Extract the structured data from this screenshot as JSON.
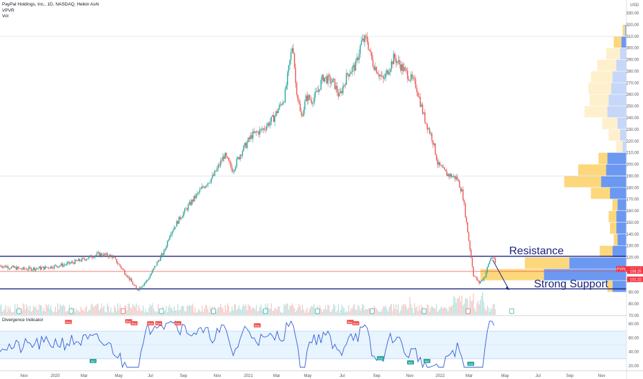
{
  "legend": {
    "symbol_line": "PayPal Holdings, Inc., 1D, NASDAQ, Heikin Ashi",
    "indicator1": "VPVR",
    "indicator2": "Vol"
  },
  "oscillator": {
    "title": "Divergence Indicator"
  },
  "currency": "USD",
  "annotations": {
    "resistance": "Resistance",
    "support": "Strong Support"
  },
  "price_tags": [
    {
      "label": "PYPL",
      "value": "110.10",
      "color": "#f23645"
    },
    {
      "label": "",
      "value": "108.25",
      "color": "#f23645"
    },
    {
      "label": "",
      "value": "101.22",
      "color": "#f23645"
    }
  ],
  "colors": {
    "up": "#26a69a",
    "down": "#ef5350",
    "resistance_line": "#1a237e",
    "vp_blue": "#5b8def",
    "vp_yellow": "#fcd36e",
    "osc_line": "#2e5bd6"
  },
  "chart_data": {
    "type": "candlestick",
    "title": "PayPal Holdings, Inc., 1D, NASDAQ, Heikin Ashi",
    "y_axis": {
      "ticks": [
        70,
        80,
        90,
        100,
        110,
        120,
        130,
        140,
        150,
        160,
        170,
        180,
        190,
        200,
        210,
        220,
        230,
        240,
        250,
        260,
        270,
        280,
        290,
        300,
        310,
        320,
        330
      ],
      "ylim": [
        70,
        333
      ]
    },
    "x_axis": {
      "ticks": [
        "Nov",
        "2020",
        "Mar",
        "May",
        "Jul",
        "Sep",
        "Nov",
        "2021",
        "Mar",
        "May",
        "Jul",
        "Sep",
        "Nov",
        "2022",
        "Mar",
        "May",
        "Jul",
        "Sep",
        "Nov"
      ]
    },
    "price_path": [
      [
        0,
        113
      ],
      [
        8,
        110
      ],
      [
        16,
        111
      ],
      [
        24,
        114
      ],
      [
        30,
        118
      ],
      [
        36,
        123
      ],
      [
        41,
        121
      ],
      [
        46,
        106
      ],
      [
        50,
        92
      ],
      [
        54,
        101
      ],
      [
        58,
        118
      ],
      [
        60,
        125
      ],
      [
        62,
        140
      ],
      [
        66,
        155
      ],
      [
        70,
        168
      ],
      [
        74,
        180
      ],
      [
        78,
        190
      ],
      [
        82,
        208
      ],
      [
        85,
        195
      ],
      [
        88,
        210
      ],
      [
        92,
        225
      ],
      [
        96,
        230
      ],
      [
        100,
        240
      ],
      [
        104,
        258
      ],
      [
        106,
        290
      ],
      [
        107,
        305
      ],
      [
        108,
        270
      ],
      [
        110,
        240
      ],
      [
        112,
        258
      ],
      [
        114,
        255
      ],
      [
        116,
        262
      ],
      [
        118,
        275
      ],
      [
        122,
        270
      ],
      [
        124,
        258
      ],
      [
        127,
        278
      ],
      [
        130,
        285
      ],
      [
        132,
        305
      ],
      [
        134,
        308
      ],
      [
        136,
        288
      ],
      [
        140,
        272
      ],
      [
        144,
        292
      ],
      [
        148,
        280
      ],
      [
        152,
        268
      ],
      [
        155,
        240
      ],
      [
        158,
        222
      ],
      [
        160,
        200
      ],
      [
        163,
        192
      ],
      [
        167,
        188
      ],
      [
        169,
        175
      ],
      [
        171,
        140
      ],
      [
        173,
        105
      ],
      [
        175,
        98
      ],
      [
        177,
        103
      ],
      [
        179,
        118
      ],
      [
        180,
        121
      ],
      [
        181,
        115
      ]
    ],
    "horizontal_lines": {
      "resistance": 121,
      "support": 93,
      "level_1": 108,
      "level_2": 190,
      "level_3": 310
    },
    "volume_profile": [
      {
        "price": 315,
        "up": 4,
        "down": 2
      },
      {
        "price": 305,
        "up": 12,
        "down": 8
      },
      {
        "price": 295,
        "up": 22,
        "down": 10
      },
      {
        "price": 285,
        "up": 30,
        "down": 16
      },
      {
        "price": 275,
        "up": 34,
        "down": 22
      },
      {
        "price": 265,
        "up": 36,
        "down": 24
      },
      {
        "price": 255,
        "up": 30,
        "down": 28
      },
      {
        "price": 245,
        "up": 36,
        "down": 30
      },
      {
        "price": 235,
        "up": 24,
        "down": 14
      },
      {
        "price": 225,
        "up": 18,
        "down": 10
      },
      {
        "price": 215,
        "up": 10,
        "down": 6
      },
      {
        "price": 205,
        "up": 14,
        "down": 30
      },
      {
        "price": 195,
        "up": 44,
        "down": 32
      },
      {
        "price": 185,
        "up": 58,
        "down": 40
      },
      {
        "price": 175,
        "up": 30,
        "down": 26
      },
      {
        "price": 165,
        "up": 8,
        "down": 14
      },
      {
        "price": 155,
        "up": 12,
        "down": 16
      },
      {
        "price": 145,
        "up": 10,
        "down": 16
      },
      {
        "price": 135,
        "up": 6,
        "down": 14
      },
      {
        "price": 125,
        "up": 20,
        "down": 22
      },
      {
        "price": 115,
        "up": 70,
        "down": 90
      },
      {
        "price": 105,
        "up": 100,
        "down": 130
      },
      {
        "price": 95,
        "up": 8,
        "down": 22
      }
    ],
    "oscillator": {
      "title": "Divergence Indicator",
      "ylim": [
        15,
        88
      ],
      "ticks": [
        20,
        40,
        60,
        80
      ],
      "band": [
        30,
        70
      ],
      "labels": [
        "Bear",
        "Bull",
        "Bear",
        "Bear",
        "Bear",
        "Bear",
        "Bear",
        "Bear",
        "Bear",
        "Bear",
        "Bull",
        "Bull",
        "Bull",
        "Bull"
      ]
    }
  }
}
